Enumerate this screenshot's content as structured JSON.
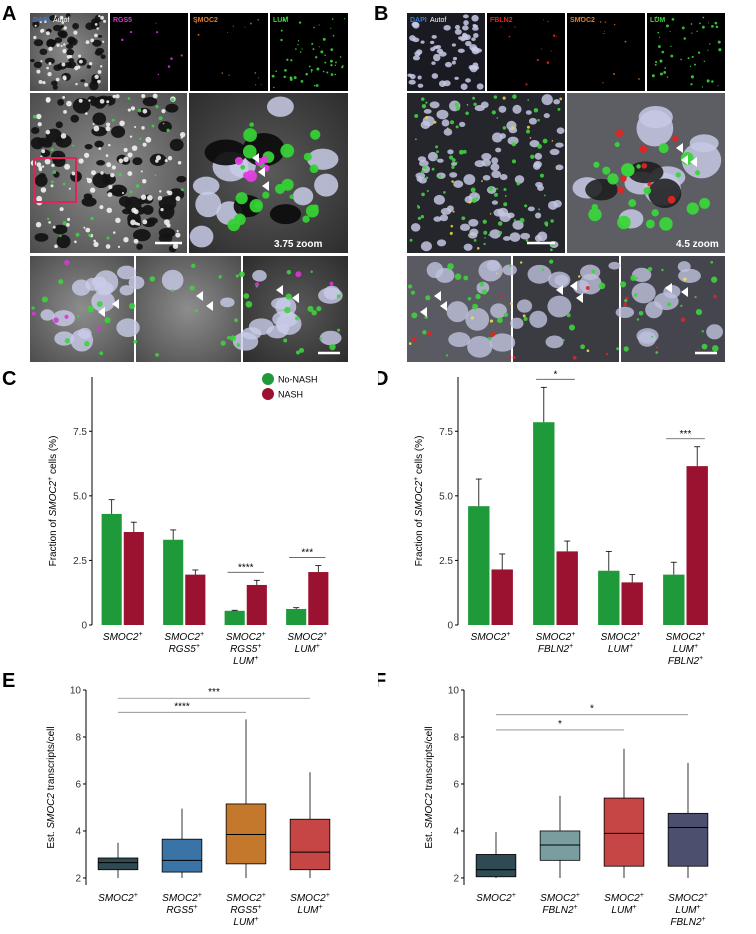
{
  "panels": {
    "A": {
      "letter": "A",
      "channels": [
        "DAPI",
        "Autof",
        "RGS5",
        "SMOC2",
        "LUM"
      ],
      "channel_colors": [
        "#3a7bd5",
        "#ffffff",
        "#d33ad3",
        "#e07b2a",
        "#3fd13f"
      ],
      "zoom_label": "3.75 zoom"
    },
    "B": {
      "letter": "B",
      "channels": [
        "DAPI",
        "Autof",
        "FBLN2",
        "SMOC2",
        "LUM"
      ],
      "channel_colors": [
        "#3a7bd5",
        "#ffffff",
        "#e02424",
        "#e07b2a",
        "#3fd13f"
      ],
      "zoom_label": "4.5 zoom"
    }
  },
  "colors": {
    "no_nash": "#1f9a3a",
    "nash": "#9b1230",
    "box_E": [
      "#2f4a52",
      "#3a74a6",
      "#c4782c",
      "#c64545"
    ],
    "box_F": [
      "#2f4a52",
      "#7a9ea0",
      "#c64545",
      "#4d4f6e"
    ]
  },
  "chart_data": [
    {
      "panel": "C",
      "type": "bar",
      "ylabel": "Fraction of SMOC2+ cells (%)",
      "ylim": [
        0,
        9.6
      ],
      "yticks": [
        "0",
        "2.5",
        "5.0",
        "7.5"
      ],
      "ytick_values": [
        0,
        2.5,
        5.0,
        7.5
      ],
      "categories": [
        [
          "SMOC2+"
        ],
        [
          "SMOC2+",
          "RGS5+"
        ],
        [
          "SMOC2+",
          "RGS5+",
          "LUM+"
        ],
        [
          "SMOC2+",
          "LUM+"
        ]
      ],
      "legend": [
        "No-NASH",
        "NASH"
      ],
      "legend_position": "top-right",
      "series": [
        {
          "name": "No-NASH",
          "values": [
            4.3,
            3.3,
            0.55,
            0.62
          ],
          "errors": [
            0.55,
            0.38,
            0.02,
            0.05
          ]
        },
        {
          "name": "NASH",
          "values": [
            3.6,
            1.95,
            1.55,
            2.05
          ],
          "errors": [
            0.38,
            0.18,
            0.18,
            0.25
          ]
        }
      ],
      "significance": [
        {
          "category": 2,
          "label": "****"
        },
        {
          "category": 3,
          "label": "***"
        }
      ]
    },
    {
      "panel": "D",
      "type": "bar",
      "ylabel": "Fraction of SMOC2+ cells (%)",
      "ylim": [
        0,
        9.6
      ],
      "yticks": [
        "0",
        "2.5",
        "5.0",
        "7.5"
      ],
      "ytick_values": [
        0,
        2.5,
        5.0,
        7.5
      ],
      "categories": [
        [
          "SMOC2+"
        ],
        [
          "SMOC2+",
          "FBLN2+"
        ],
        [
          "SMOC2+",
          "LUM+"
        ],
        [
          "SMOC2+",
          "LUM+",
          "FBLN2+"
        ]
      ],
      "series": [
        {
          "name": "No-NASH",
          "values": [
            4.6,
            7.85,
            2.1,
            1.95
          ],
          "errors": [
            1.05,
            1.35,
            0.75,
            0.48
          ]
        },
        {
          "name": "NASH",
          "values": [
            2.15,
            2.85,
            1.65,
            6.15
          ],
          "errors": [
            0.6,
            0.4,
            0.3,
            0.75
          ]
        }
      ],
      "significance": [
        {
          "category": 1,
          "label": "*"
        },
        {
          "category": 3,
          "label": "***"
        }
      ]
    },
    {
      "panel": "E",
      "type": "box",
      "ylabel": "Est. SMOC2 transcripts/cell",
      "ylim": [
        1.7,
        10
      ],
      "yticks": [
        "2",
        "4",
        "6",
        "8",
        "10"
      ],
      "ytick_values": [
        2,
        4,
        6,
        8,
        10
      ],
      "categories": [
        [
          "SMOC2+"
        ],
        [
          "SMOC2+",
          "RGS5+"
        ],
        [
          "SMOC2+",
          "RGS5+",
          "LUM+"
        ],
        [
          "SMOC2+",
          "LUM+"
        ]
      ],
      "boxes": [
        {
          "min": 2.0,
          "q1": 2.35,
          "median": 2.65,
          "q3": 2.85,
          "max": 3.5
        },
        {
          "min": 2.0,
          "q1": 2.25,
          "median": 2.75,
          "q3": 3.65,
          "max": 4.95
        },
        {
          "min": 2.0,
          "q1": 2.6,
          "median": 3.85,
          "q3": 5.15,
          "max": 8.75
        },
        {
          "min": 2.0,
          "q1": 2.35,
          "median": 3.1,
          "q3": 4.5,
          "max": 6.5
        }
      ],
      "significance": [
        {
          "from": 0,
          "to": 3,
          "label": "***",
          "y": 9.65
        },
        {
          "from": 0,
          "to": 2,
          "label": "****",
          "y": 9.05
        }
      ]
    },
    {
      "panel": "F",
      "type": "box",
      "ylabel": "Est. SMOC2 transcripts/cell",
      "ylim": [
        1.7,
        10
      ],
      "yticks": [
        "2",
        "4",
        "6",
        "8",
        "10"
      ],
      "ytick_values": [
        2,
        4,
        6,
        8,
        10
      ],
      "categories": [
        [
          "SMOC2+"
        ],
        [
          "SMOC2+",
          "FBLN2+"
        ],
        [
          "SMOC2+",
          "LUM+"
        ],
        [
          "SMOC2+",
          "LUM+",
          "FBLN2+"
        ]
      ],
      "boxes": [
        {
          "min": 2.0,
          "q1": 2.05,
          "median": 2.35,
          "q3": 3.0,
          "max": 3.95
        },
        {
          "min": 2.0,
          "q1": 2.75,
          "median": 3.4,
          "q3": 4.0,
          "max": 5.5
        },
        {
          "min": 2.0,
          "q1": 2.5,
          "median": 3.9,
          "q3": 5.4,
          "max": 7.5
        },
        {
          "min": 2.0,
          "q1": 2.5,
          "median": 4.15,
          "q3": 4.75,
          "max": 6.9
        }
      ],
      "significance": [
        {
          "from": 0,
          "to": 3,
          "label": "*",
          "y": 8.95
        },
        {
          "from": 0,
          "to": 2,
          "label": "*",
          "y": 8.3
        }
      ]
    }
  ]
}
